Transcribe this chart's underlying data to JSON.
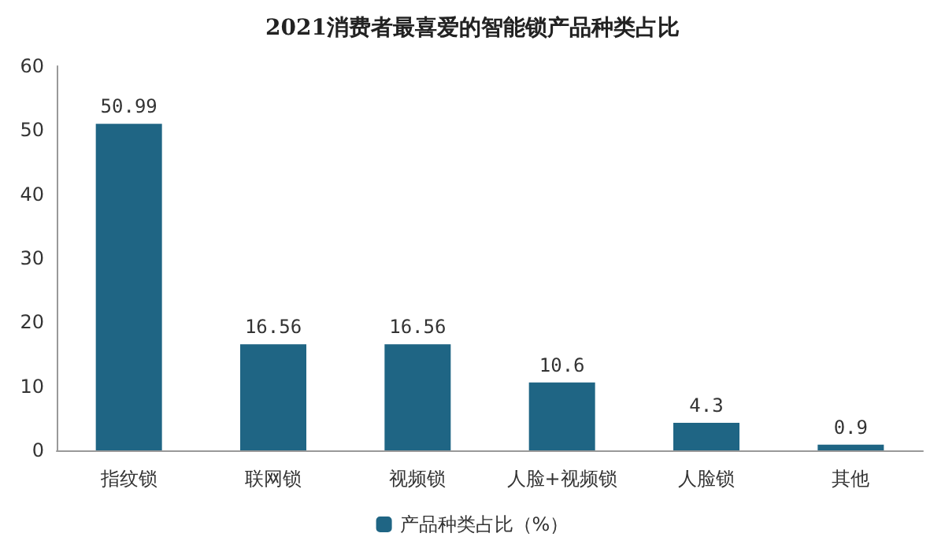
{
  "chart_data": {
    "type": "bar",
    "title": "2021消费者最喜爱的智能锁产品种类占比",
    "categories": [
      "指纹锁",
      "联网锁",
      "视频锁",
      "人脸+视频锁",
      "人脸锁",
      "其他"
    ],
    "series": [
      {
        "name": "产品种类占比（%）",
        "color": "#1f6584",
        "values": [
          50.99,
          16.56,
          16.56,
          10.6,
          4.3,
          0.9
        ]
      }
    ],
    "ylim": [
      0,
      60
    ],
    "yticks": [
      0,
      10,
      20,
      30,
      40,
      50,
      60
    ],
    "grid": false,
    "legend": "bottom",
    "data_labels": true
  }
}
